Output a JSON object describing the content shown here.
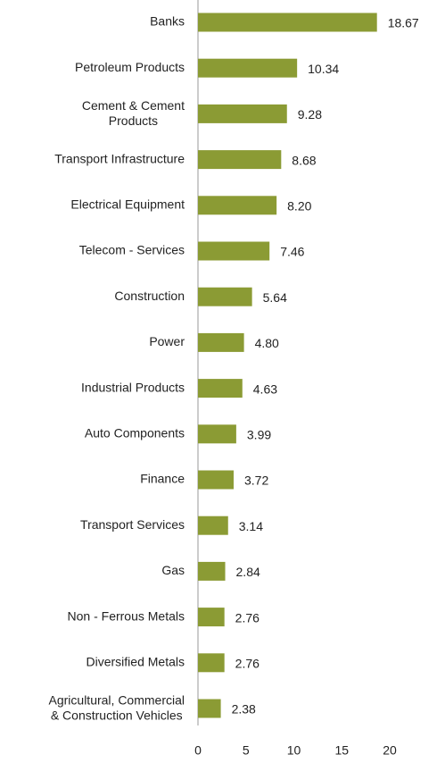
{
  "chart_data": {
    "type": "barh",
    "categories": [
      "Banks",
      "Petroleum Products",
      "Cement & Cement\nProducts",
      "Transport Infrastructure",
      "Electrical Equipment",
      "Telecom - Services",
      "Construction",
      "Power",
      "Industrial Products",
      "Auto Components",
      "Finance",
      "Transport Services",
      "Gas",
      "Non - Ferrous Metals",
      "Diversified Metals",
      "Agricultural, Commercial\n& Construction Vehicles"
    ],
    "values": [
      18.67,
      10.34,
      9.28,
      8.68,
      8.2,
      7.46,
      5.64,
      4.8,
      4.63,
      3.99,
      3.72,
      3.14,
      2.84,
      2.76,
      2.76,
      2.38
    ],
    "value_labels": [
      "18.67",
      "10.34",
      "9.28",
      "8.68",
      "8.20",
      "7.46",
      "5.64",
      "4.80",
      "4.63",
      "3.99",
      "3.72",
      "3.14",
      "2.84",
      "2.76",
      "2.76",
      "2.38"
    ],
    "color": "#8b9b34",
    "xlim": [
      0,
      20
    ],
    "xticks": [
      0,
      5,
      10,
      15,
      20
    ]
  }
}
